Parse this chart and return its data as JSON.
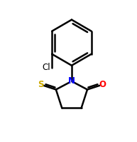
{
  "background_color": "#ffffff",
  "line_color": "#000000",
  "atom_colors": {
    "N": "#0000ff",
    "O": "#ff0000",
    "S": "#ccaa00",
    "Cl": "#000000"
  },
  "figsize": [
    1.93,
    1.99
  ],
  "dpi": 100,
  "xlim": [
    1.0,
    9.0
  ],
  "ylim": [
    0.5,
    9.5
  ]
}
